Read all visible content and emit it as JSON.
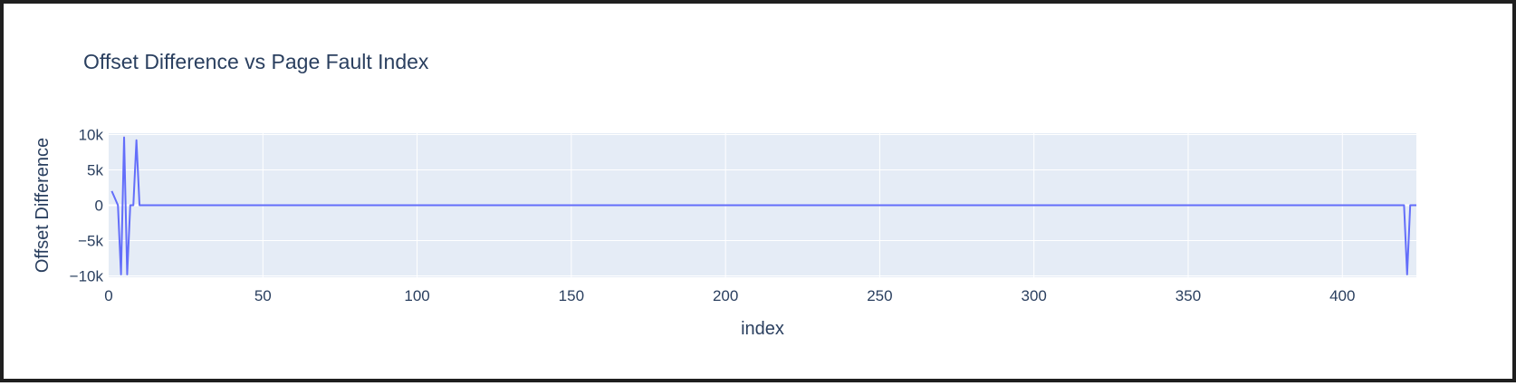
{
  "chart_data": {
    "type": "line",
    "title": "Offset Difference vs Page Fault Index",
    "xlabel": "index",
    "ylabel": "Offset Difference",
    "xlim": [
      0,
      424
    ],
    "ylim": [
      -10200,
      10200
    ],
    "x_ticks": [
      {
        "value": 0,
        "label": "0"
      },
      {
        "value": 50,
        "label": "50"
      },
      {
        "value": 100,
        "label": "100"
      },
      {
        "value": 150,
        "label": "150"
      },
      {
        "value": 200,
        "label": "200"
      },
      {
        "value": 250,
        "label": "250"
      },
      {
        "value": 300,
        "label": "300"
      },
      {
        "value": 350,
        "label": "350"
      },
      {
        "value": 400,
        "label": "400"
      }
    ],
    "y_ticks": [
      {
        "value": 10000,
        "label": "10k"
      },
      {
        "value": 5000,
        "label": "5k"
      },
      {
        "value": 0,
        "label": "0"
      },
      {
        "value": -5000,
        "label": "−5k"
      },
      {
        "value": -10000,
        "label": "−10k"
      }
    ],
    "grid": true,
    "line_color": "#636efa",
    "plot_bg": "#e5ecf6",
    "series": [
      {
        "x": [
          1,
          3,
          4,
          5,
          6,
          7,
          8,
          9,
          10,
          11,
          420,
          421,
          422,
          424
        ],
        "y": [
          2000,
          0,
          -9800,
          9600,
          -9800,
          0,
          0,
          9200,
          0,
          0,
          0,
          -9800,
          0,
          0
        ]
      }
    ]
  }
}
